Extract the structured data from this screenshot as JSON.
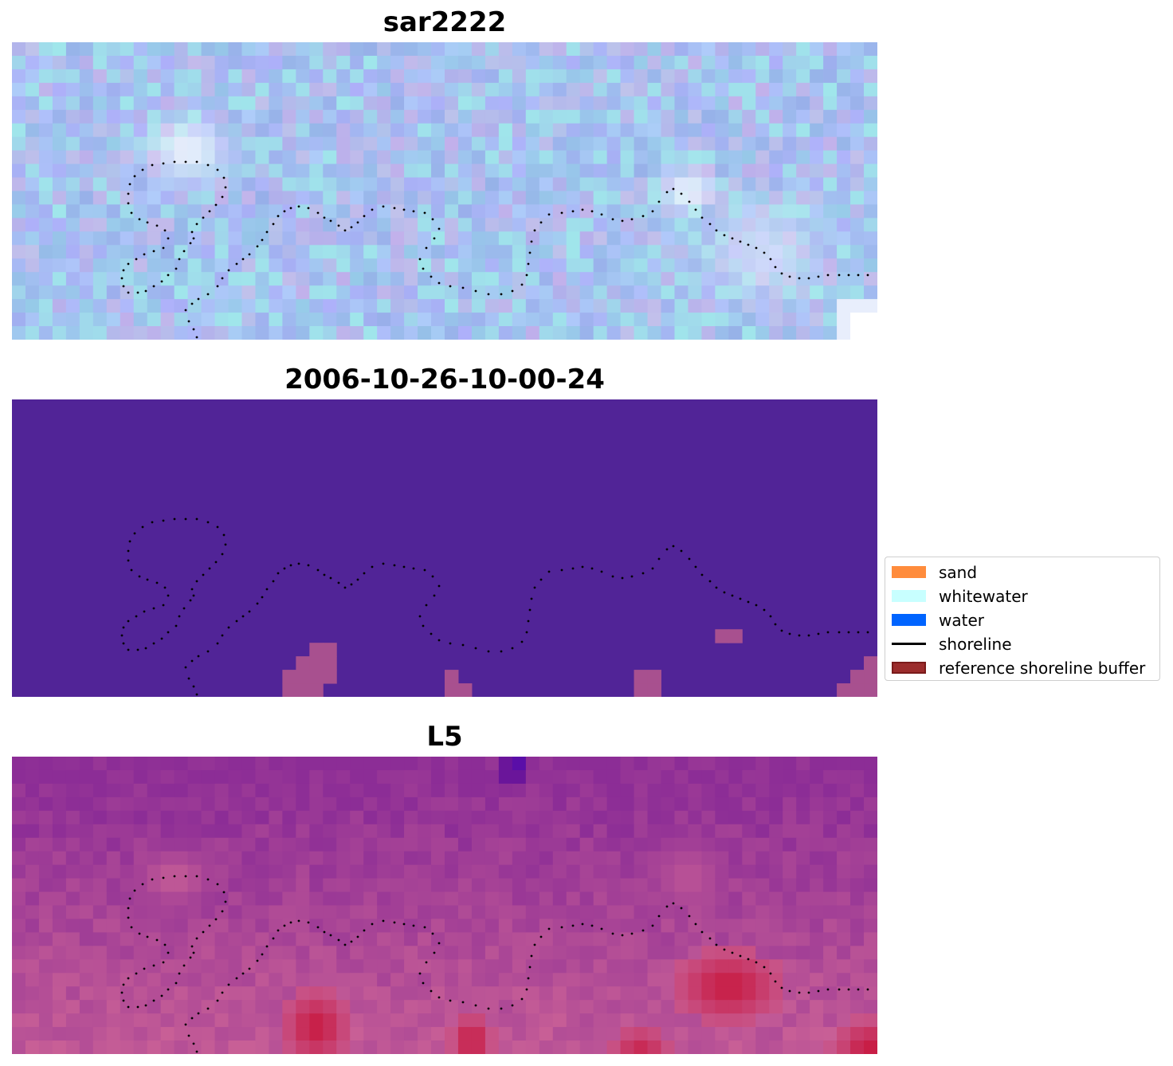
{
  "panels": [
    {
      "title": "sar2222",
      "kind": "sar"
    },
    {
      "title": "2006-10-26-10-00-24",
      "kind": "classification"
    },
    {
      "title": "L5",
      "kind": "l5"
    }
  ],
  "legend": {
    "items": [
      {
        "label": "sand",
        "color": "#ff8c3c",
        "type": "patch"
      },
      {
        "label": "whitewater",
        "color": "#c8ffff",
        "type": "patch"
      },
      {
        "label": "water",
        "color": "#0064ff",
        "type": "patch"
      },
      {
        "label": "shoreline",
        "color": "#000000",
        "type": "line"
      },
      {
        "label": "reference shoreline buffer",
        "color": "#9b2c2c",
        "type": "patch"
      }
    ]
  },
  "colors": {
    "classification_background": "#512497",
    "buffer_overlay": "#a8508f",
    "shoreline_dots": "#000000"
  }
}
